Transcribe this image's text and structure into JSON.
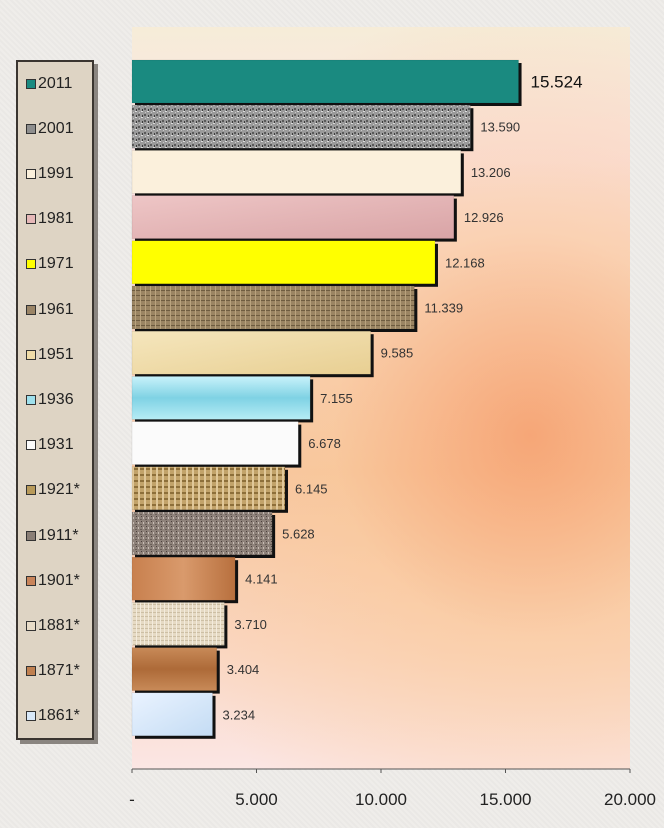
{
  "chart_data": {
    "type": "bar",
    "orientation": "horizontal",
    "categories": [
      "2011",
      "2001",
      "1991",
      "1981",
      "1971",
      "1961",
      "1951",
      "1936",
      "1931",
      "1921*",
      "1911*",
      "1901*",
      "1881*",
      "1871*",
      "1861*"
    ],
    "values": [
      15524,
      13590,
      13206,
      12926,
      12168,
      11339,
      9585,
      7155,
      6678,
      6145,
      5628,
      4141,
      3710,
      3404,
      3234
    ],
    "value_labels": [
      "15.524",
      "13.590",
      "13.206",
      "12.926",
      "12.168",
      "11.339",
      "9.585",
      "7.155",
      "6.678",
      "6.145",
      "5.628",
      "4.141",
      "3.710",
      "3.404",
      "3.234"
    ],
    "colors": [
      "#1a8a80",
      "#8e8e8e",
      "#fbf0dc",
      "#e6b8b8",
      "#ffff00",
      "#9a8466",
      "#f0dca8",
      "#9ee0ec",
      "#fbfbfb",
      "#b89a5a",
      "#8a7e76",
      "#c9845a",
      "#e8dcc8",
      "#c08050",
      "#d8e8f8"
    ],
    "xlim": [
      0,
      20000
    ],
    "x_ticks": [
      0,
      5000,
      10000,
      15000,
      20000
    ],
    "x_tick_labels": [
      "-",
      "5.000",
      "10.000",
      "15.000",
      "20.000"
    ],
    "legend_position": "left",
    "grid": false
  }
}
